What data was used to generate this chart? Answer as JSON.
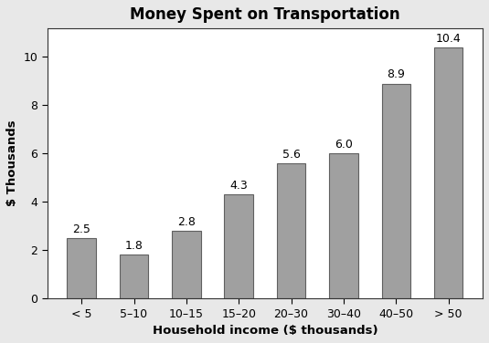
{
  "categories": [
    "< 5",
    "5–10",
    "10–15",
    "15–20",
    "20–30",
    "30–40",
    "40–50",
    "> 50"
  ],
  "values": [
    2.5,
    1.8,
    2.8,
    4.3,
    5.6,
    6.0,
    8.9,
    10.4
  ],
  "bar_color": "#a0a0a0",
  "bar_edgecolor": "#606060",
  "title": "Money Spent on Transportation",
  "xlabel": "Household income ($ thousands)",
  "ylabel": "$ Thousands",
  "ylim": [
    0,
    11.2
  ],
  "yticks": [
    0,
    2,
    4,
    6,
    8,
    10
  ],
  "title_fontsize": 12,
  "label_fontsize": 9.5,
  "tick_fontsize": 9,
  "annotation_fontsize": 9,
  "background_color": "#e8e8e8",
  "plot_bg_color": "#ffffff"
}
